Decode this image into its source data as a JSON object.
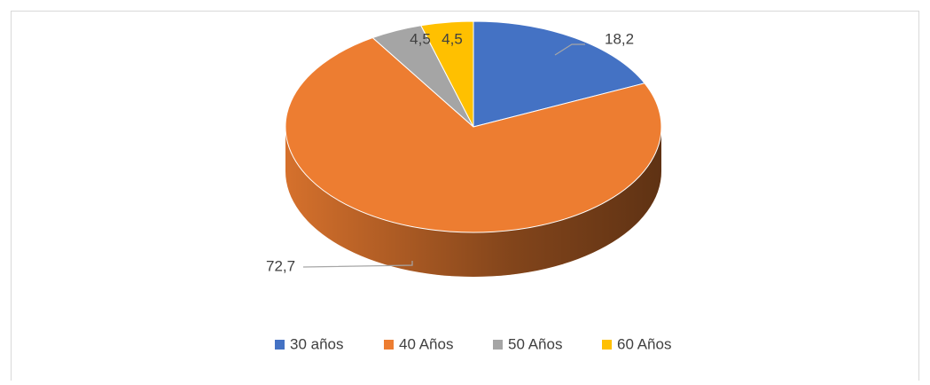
{
  "chart_data": {
    "type": "pie3d",
    "categories": [
      "30 años",
      "40 Años",
      "50 Años",
      "60 Años"
    ],
    "values": [
      18.2,
      72.7,
      4.5,
      4.5
    ],
    "value_labels": [
      "18,2",
      "72,7",
      "4,5",
      "4,5"
    ],
    "colors": [
      "#4472c4",
      "#ed7d31",
      "#a5a5a5",
      "#ffc000"
    ],
    "legend": "bottom"
  }
}
